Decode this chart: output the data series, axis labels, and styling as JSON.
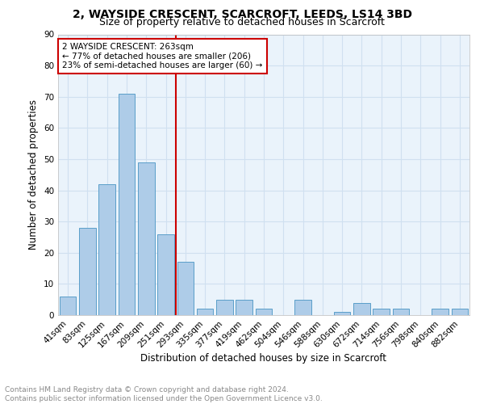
{
  "title": "2, WAYSIDE CRESCENT, SCARCROFT, LEEDS, LS14 3BD",
  "subtitle": "Size of property relative to detached houses in Scarcroft",
  "xlabel": "Distribution of detached houses by size in Scarcroft",
  "ylabel": "Number of detached properties",
  "categories": [
    "41sqm",
    "83sqm",
    "125sqm",
    "167sqm",
    "209sqm",
    "251sqm",
    "293sqm",
    "335sqm",
    "377sqm",
    "419sqm",
    "462sqm",
    "504sqm",
    "546sqm",
    "588sqm",
    "630sqm",
    "672sqm",
    "714sqm",
    "756sqm",
    "798sqm",
    "840sqm",
    "882sqm"
  ],
  "values": [
    6,
    28,
    42,
    71,
    49,
    26,
    17,
    2,
    5,
    5,
    2,
    0,
    5,
    0,
    1,
    4,
    2,
    2,
    0,
    2,
    2
  ],
  "bar_color": "#aecce8",
  "bar_edge_color": "#5a9ec9",
  "grid_color": "#d0e0f0",
  "background_color": "#eaf3fb",
  "vline_x": 5.5,
  "vline_color": "#cc0000",
  "box_text_line1": "2 WAYSIDE CRESCENT: 263sqm",
  "box_text_line2": "← 77% of detached houses are smaller (206)",
  "box_text_line3": "23% of semi-detached houses are larger (60) →",
  "box_edge_color": "#cc0000",
  "ylim": [
    0,
    90
  ],
  "yticks": [
    0,
    10,
    20,
    30,
    40,
    50,
    60,
    70,
    80,
    90
  ],
  "footnote_line1": "Contains HM Land Registry data © Crown copyright and database right 2024.",
  "footnote_line2": "Contains public sector information licensed under the Open Government Licence v3.0.",
  "title_fontsize": 10,
  "subtitle_fontsize": 9,
  "tick_fontsize": 7.5,
  "axis_label_fontsize": 8.5,
  "footnote_fontsize": 6.5
}
